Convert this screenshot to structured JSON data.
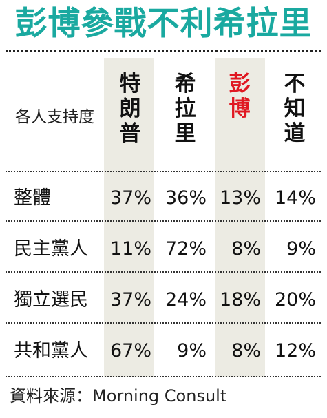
{
  "header": {
    "title": "彭博參戰不利希拉里"
  },
  "chart_data": {
    "type": "table",
    "corner_label": "各人支持度",
    "columns": [
      {
        "chars": [
          "特",
          "朗",
          "普"
        ],
        "highlight": false
      },
      {
        "chars": [
          "希",
          "拉",
          "里"
        ],
        "highlight": false
      },
      {
        "chars": [
          "彭",
          "博"
        ],
        "highlight": true
      },
      {
        "chars": [
          "不",
          "知",
          "道"
        ],
        "highlight": false
      }
    ],
    "rows": [
      {
        "label": "整體",
        "values": [
          "37%",
          "36%",
          "13%",
          "14%"
        ]
      },
      {
        "label": "民主黨人",
        "values": [
          "11%",
          "72%",
          "8%",
          "9%"
        ]
      },
      {
        "label": "獨立選民",
        "values": [
          "37%",
          "24%",
          "18%",
          "20%"
        ]
      },
      {
        "label": "共和黨人",
        "values": [
          "67%",
          "9%",
          "8%",
          "12%"
        ]
      }
    ],
    "highlight_color": "#e01822",
    "title_color": "#1aa9a0",
    "shade_color": "#ecebe3"
  },
  "footer": {
    "source": "資料來源：Morning Consult"
  }
}
